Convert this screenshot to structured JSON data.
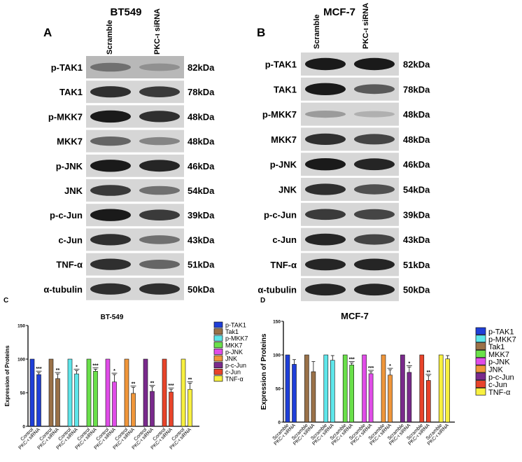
{
  "blots": [
    {
      "panel_label": "A",
      "title": "BT549",
      "lanes": [
        "Scramble",
        "PKC-ι siRNA"
      ],
      "rows": [
        {
          "protein": "p-TAK1",
          "size": "82kDa"
        },
        {
          "protein": "TAK1",
          "size": "78kDa"
        },
        {
          "protein": "p-MKK7",
          "size": "48kDa"
        },
        {
          "protein": "MKK7",
          "size": "48kDa"
        },
        {
          "protein": "p-JNK",
          "size": "46kDa"
        },
        {
          "protein": "JNK",
          "size": "54kDa"
        },
        {
          "protein": "p-c-Jun",
          "size": "39kDa"
        },
        {
          "protein": "c-Jun",
          "size": "43kDa"
        },
        {
          "protein": "TNF-α",
          "size": "51kDa"
        },
        {
          "protein": "α-tubulin",
          "size": "50kDa"
        }
      ]
    },
    {
      "panel_label": "B",
      "title": "MCF-7",
      "lanes": [
        "Scramble",
        "PKC-ι siRNA"
      ],
      "rows": [
        {
          "protein": "p-TAK1",
          "size": "82kDa"
        },
        {
          "protein": "TAK1",
          "size": "78kDa"
        },
        {
          "protein": "p-MKK7",
          "size": "48kDa"
        },
        {
          "protein": "MKK7",
          "size": "48kDa"
        },
        {
          "protein": "p-JNK",
          "size": "46kDa"
        },
        {
          "protein": "JNK",
          "size": "54kDa"
        },
        {
          "protein": "p-c-Jun",
          "size": "39kDa"
        },
        {
          "protein": "c-Jun",
          "size": "43kDa"
        },
        {
          "protein": "TNF-α",
          "size": "51kDa"
        },
        {
          "protein": "α-tubulin",
          "size": "50kDa"
        }
      ]
    }
  ],
  "chart_data": [
    {
      "panel_label": "C",
      "type": "bar",
      "title": "BT-549",
      "ylabel": "Expression of Proteins",
      "ylim": [
        0,
        150
      ],
      "yticks": [
        0,
        50,
        100,
        150
      ],
      "group_labels": [
        "Control",
        "PKC-ι siRNA"
      ],
      "legend_position": "right",
      "series": [
        {
          "name": "p-TAK1",
          "color": "#1f3fd8",
          "values": [
            100,
            77
          ],
          "error": [
            0,
            3
          ],
          "significance": "***"
        },
        {
          "name": "Tak1",
          "color": "#9a7148",
          "values": [
            100,
            71
          ],
          "error": [
            0,
            7
          ],
          "significance": "**"
        },
        {
          "name": "p-MKK7",
          "color": "#5ee6ea",
          "values": [
            100,
            78
          ],
          "error": [
            0,
            5
          ],
          "significance": "*"
        },
        {
          "name": "MKK7",
          "color": "#6ae04a",
          "values": [
            100,
            82
          ],
          "error": [
            0,
            3
          ],
          "significance": "***"
        },
        {
          "name": "p-JNK",
          "color": "#e04ce8",
          "values": [
            100,
            66
          ],
          "error": [
            0,
            11
          ],
          "significance": "*"
        },
        {
          "name": "JNK",
          "color": "#f0963a",
          "values": [
            100,
            49
          ],
          "error": [
            0,
            9
          ],
          "significance": "**"
        },
        {
          "name": "p-c-Jun",
          "color": "#7a2a8c",
          "values": [
            100,
            52
          ],
          "error": [
            0,
            7
          ],
          "significance": "**"
        },
        {
          "name": "c-Jun",
          "color": "#e8442a",
          "values": [
            100,
            51
          ],
          "error": [
            0,
            4
          ],
          "significance": "***"
        },
        {
          "name": "TNF-α",
          "color": "#f8f040",
          "values": [
            100,
            55
          ],
          "error": [
            0,
            9
          ],
          "significance": "**"
        }
      ],
      "legend_order": [
        "p-TAK1",
        "Tak1",
        "p-MKK7",
        "MKK7",
        "p-JNK",
        "JNK",
        "p-c-Jun",
        "c-Jun",
        "TNF-α"
      ]
    },
    {
      "panel_label": "D",
      "type": "bar",
      "title": "MCF-7",
      "ylabel": "Expression of Proteins",
      "ylim": [
        0,
        150
      ],
      "yticks": [
        0,
        50,
        100,
        150
      ],
      "group_labels": [
        "Scramble",
        "PKC-ι siRNA"
      ],
      "legend_position": "right",
      "series": [
        {
          "name": "p-TAK1",
          "color": "#1f3fd8",
          "values": [
            100,
            86
          ],
          "error": [
            0,
            7
          ],
          "significance": ""
        },
        {
          "name": "Tak1",
          "color": "#9a7148",
          "values": [
            100,
            75
          ],
          "error": [
            0,
            15
          ],
          "significance": ""
        },
        {
          "name": "p-MKK7",
          "color": "#5ee6ea",
          "values": [
            100,
            92
          ],
          "error": [
            0,
            7
          ],
          "significance": ""
        },
        {
          "name": "MKK7",
          "color": "#6ae04a",
          "values": [
            100,
            85
          ],
          "error": [
            0,
            3
          ],
          "significance": "***"
        },
        {
          "name": "p-JNK",
          "color": "#e04ce8",
          "values": [
            100,
            72
          ],
          "error": [
            0,
            3
          ],
          "significance": "***"
        },
        {
          "name": "JNK",
          "color": "#f0963a",
          "values": [
            100,
            70
          ],
          "error": [
            0,
            8
          ],
          "significance": "*"
        },
        {
          "name": "p-c-Jun",
          "color": "#7a2a8c",
          "values": [
            100,
            74
          ],
          "error": [
            0,
            8
          ],
          "significance": "*"
        },
        {
          "name": "c-Jun",
          "color": "#e8442a",
          "values": [
            100,
            62
          ],
          "error": [
            0,
            7
          ],
          "significance": "**"
        },
        {
          "name": "TNF-α",
          "color": "#f8f040",
          "values": [
            100,
            94
          ],
          "error": [
            0,
            5
          ],
          "significance": ""
        }
      ],
      "legend_order": [
        "p-TAK1",
        "p-MKK7",
        "Tak1",
        "MKK7",
        "p-JNK",
        "JNK",
        "p-c-Jun",
        "c-Jun",
        "TNF-α"
      ]
    }
  ]
}
